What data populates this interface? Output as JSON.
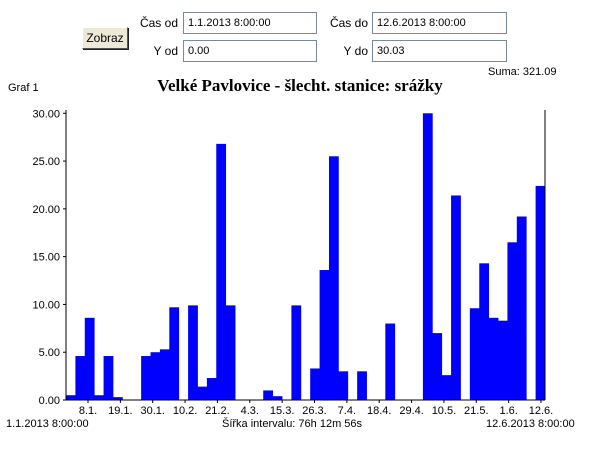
{
  "controls": {
    "show_button": "Zobraz",
    "time_from_label": "Čas od",
    "time_from_value": "1.1.2013 8:00:00",
    "time_to_label": "Čas do",
    "time_to_value": "12.6.2013 8:00:00",
    "y_from_label": "Y od",
    "y_from_value": "0.00",
    "y_to_label": "Y do",
    "y_to_value": "30.03"
  },
  "sum_text": "Suma: 321.09",
  "graph_label": "Graf 1",
  "footer": {
    "start": "1.1.2013 8:00:00",
    "interval": "Šířka intervalu: 76h 12m 56s",
    "end": "12.6.2013 8:00:00"
  },
  "chart_data": {
    "type": "bar",
    "title": "Velké Pavlovice - šlecht. stanice: srážky",
    "xlabel": "",
    "ylabel": "",
    "ylim": [
      0,
      30.03
    ],
    "yticks": [
      "0.00",
      "5.00",
      "10.00",
      "15.00",
      "20.00",
      "25.00",
      "30.00"
    ],
    "ytick_values": [
      0,
      5,
      10,
      15,
      20,
      25,
      30
    ],
    "xticks": [
      "8.1.",
      "19.1.",
      "30.1.",
      "10.2.",
      "21.2.",
      "4.3.",
      "15.3.",
      "26.3.",
      "7.4.",
      "18.4.",
      "29.4.",
      "10.5.",
      "21.5.",
      "1.6.",
      "12.6."
    ],
    "bar_color": "#0000ff",
    "values": [
      0.5,
      4.6,
      8.6,
      0.5,
      4.6,
      0.3,
      0,
      0,
      4.6,
      5.0,
      5.3,
      9.7,
      0,
      9.9,
      1.4,
      2.3,
      26.8,
      9.9,
      0,
      0,
      0,
      1.0,
      0.4,
      0,
      9.9,
      0,
      3.3,
      13.6,
      25.5,
      3.0,
      0,
      3.0,
      0,
      0,
      8.0,
      0,
      0,
      0,
      30.0,
      7.0,
      2.6,
      21.4,
      0,
      9.6,
      14.3,
      8.6,
      8.3,
      16.5,
      19.2,
      0,
      22.4
    ]
  }
}
